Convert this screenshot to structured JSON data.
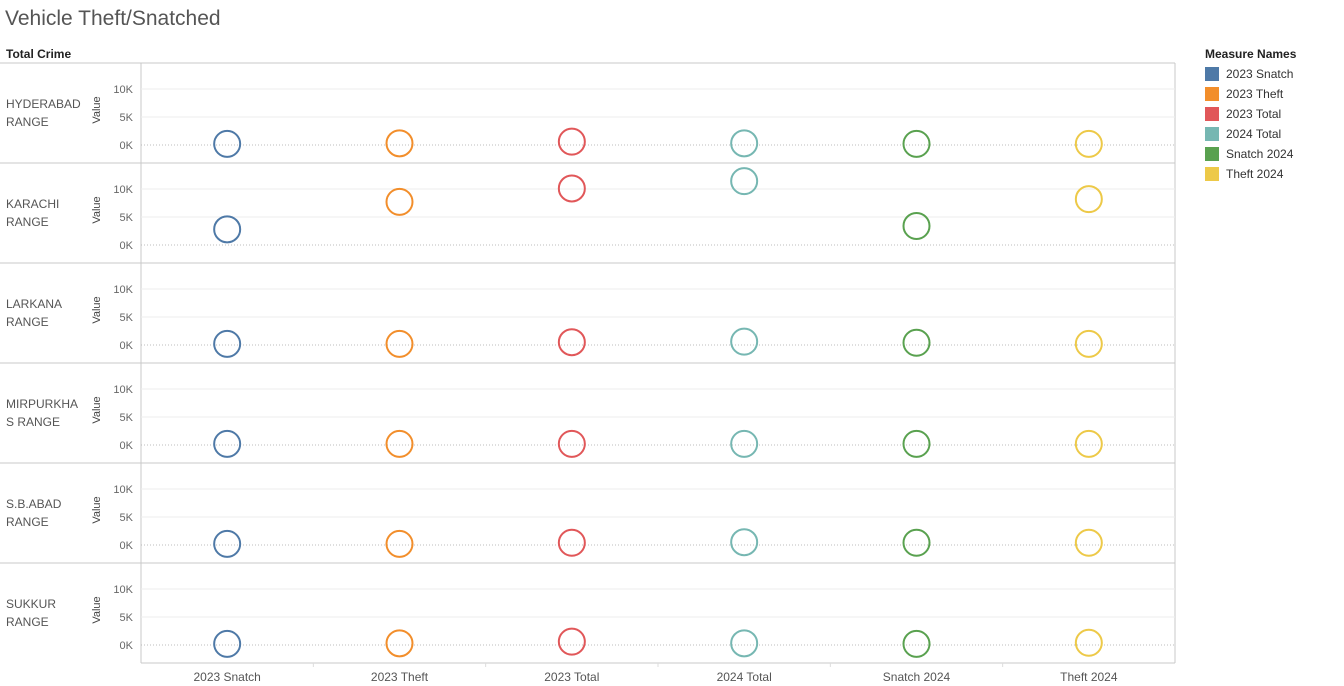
{
  "title": "Vehicle Theft/Snatched",
  "row_header": "Total Crime",
  "legend_title": "Measure Names",
  "chart_data": {
    "type": "scatter",
    "title": "Vehicle Theft/Snatched",
    "ylabel": "Value",
    "ylim": [
      0,
      12000
    ],
    "yticks": [
      0,
      5000,
      10000
    ],
    "ytick_labels": [
      "0K",
      "5K",
      "10K"
    ],
    "categories": [
      "2023 Snatch",
      "2023 Theft",
      "2023 Total",
      "2024 Total",
      "Snatch 2024",
      "Theft 2024"
    ],
    "colors": [
      "#4e79a7",
      "#f28e2b",
      "#e15759",
      "#76b7b2",
      "#59a14f",
      "#edc948"
    ],
    "rows": [
      {
        "label": [
          "HYDERABAD",
          "RANGE"
        ],
        "values": [
          200,
          300,
          600,
          300,
          200,
          200
        ]
      },
      {
        "label": [
          "KARACHI",
          "RANGE"
        ],
        "values": [
          2800,
          7700,
          10100,
          11400,
          3400,
          8200
        ]
      },
      {
        "label": [
          "LARKANA",
          "RANGE"
        ],
        "values": [
          200,
          200,
          500,
          600,
          400,
          200
        ]
      },
      {
        "label": [
          "MIRPURKHA",
          "S RANGE"
        ],
        "values": [
          200,
          200,
          200,
          200,
          200,
          200
        ]
      },
      {
        "label": [
          "S.B.ABAD",
          "RANGE"
        ],
        "values": [
          200,
          200,
          400,
          500,
          400,
          400
        ]
      },
      {
        "label": [
          "SUKKUR",
          "RANGE"
        ],
        "values": [
          200,
          300,
          600,
          300,
          200,
          400
        ]
      }
    ],
    "grid": true,
    "legend": "right"
  },
  "legend_items": [
    "2023 Snatch",
    "2023 Theft",
    "2023 Total",
    "2024 Total",
    "Snatch 2024",
    "Theft 2024"
  ]
}
